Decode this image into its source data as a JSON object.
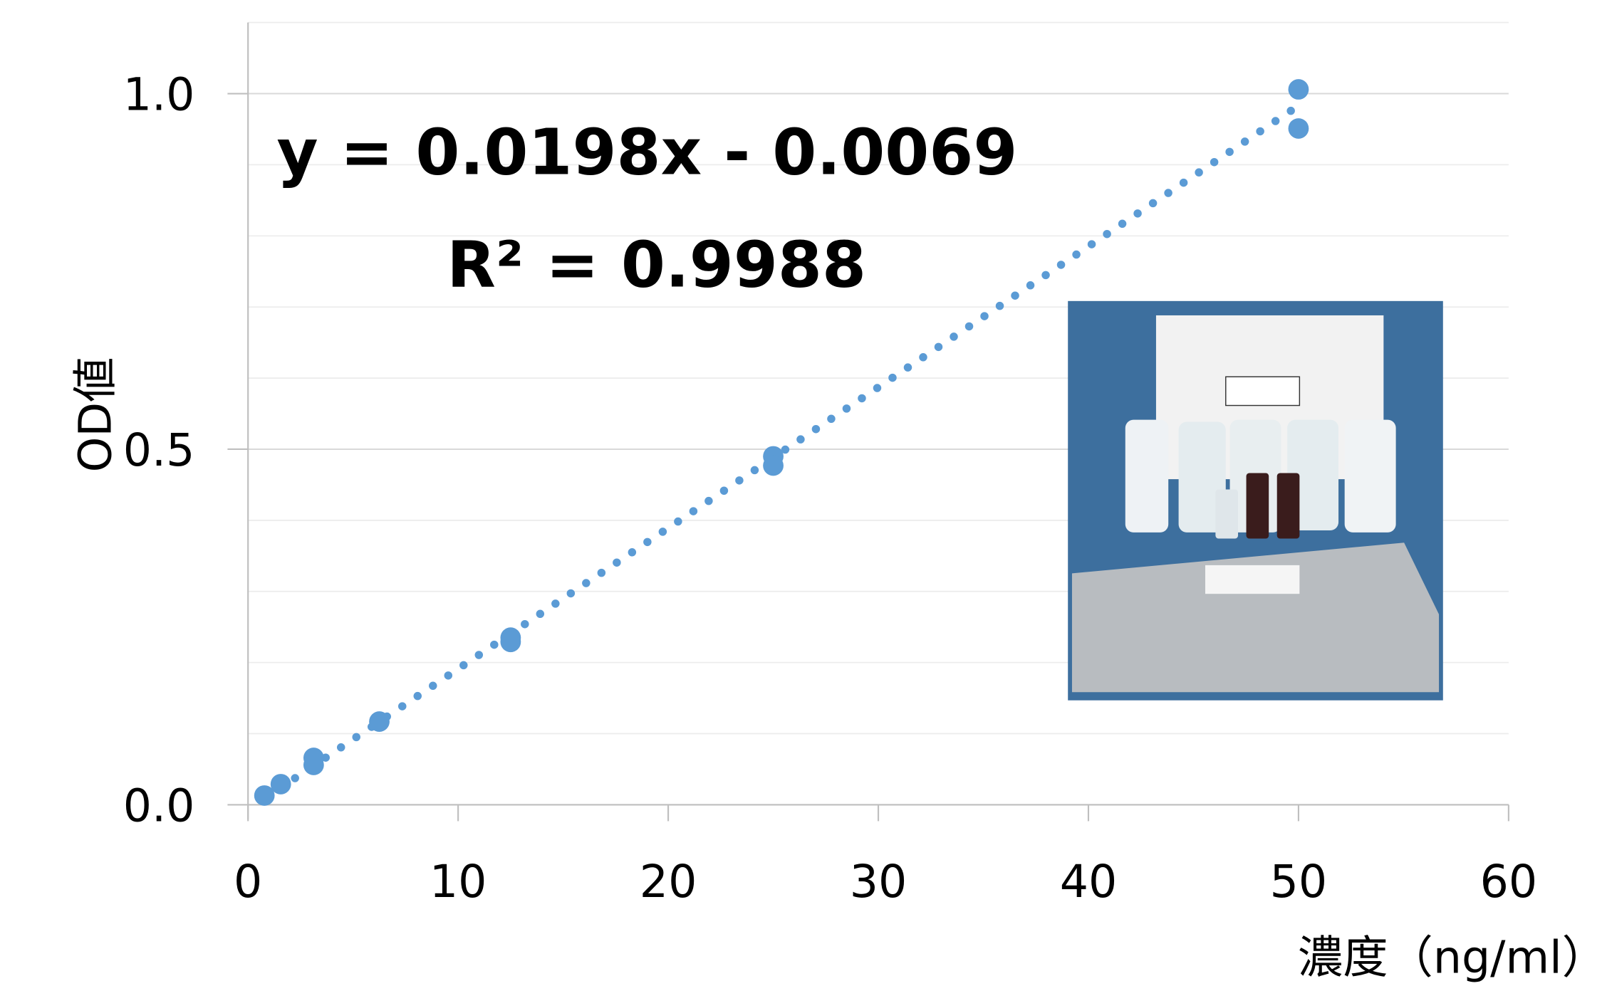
{
  "chart_data": {
    "type": "scatter",
    "x_label": "濃度（ng/ml）",
    "y_label": "OD値",
    "annotations": [
      "y = 0.0198x - 0.0069",
      "R² = 0.9988"
    ],
    "trendline": {
      "slope": 0.0198,
      "intercept": -0.0069
    },
    "color": "#5b9bd5",
    "x": [
      0.78,
      1.56,
      3.125,
      3.125,
      6.25,
      12.5,
      12.5,
      25,
      25,
      50,
      50
    ],
    "values": [
      0.013,
      0.029,
      0.066,
      0.056,
      0.117,
      0.235,
      0.229,
      0.49,
      0.477,
      1.006,
      0.951
    ],
    "xlim": [
      0,
      60
    ],
    "xticks": [
      0,
      10,
      20,
      30,
      40,
      50,
      60
    ],
    "ylim": [
      0,
      1.1
    ],
    "yticks": [
      {
        "value": 0,
        "label": "0.0"
      },
      {
        "value": 0.5,
        "label": "0.5"
      },
      {
        "value": 1,
        "label": "1.0"
      }
    ],
    "minor_grid": [
      0.1,
      0.2,
      0.3,
      0.4,
      0.6,
      0.7,
      0.8,
      0.9,
      1.1
    ],
    "grid": true
  }
}
